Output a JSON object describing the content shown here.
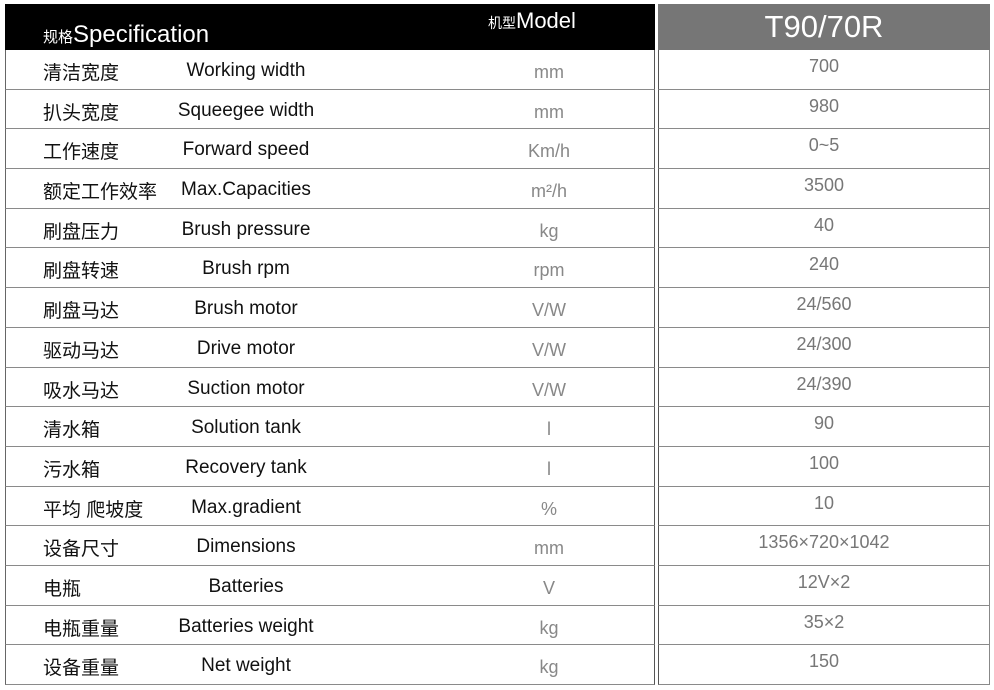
{
  "header": {
    "spec_cn": "规格",
    "spec_en": "Specification",
    "model_cn": "机型",
    "model_en": "Model",
    "model_value": "T90/70R"
  },
  "rows": [
    {
      "cn": "清洁宽度",
      "en": "Working width",
      "unit": "mm",
      "value": "700"
    },
    {
      "cn": "扒头宽度",
      "en": "Squeegee width",
      "unit": "mm",
      "value": "980"
    },
    {
      "cn": "工作速度",
      "en": "Forward speed",
      "unit": "Km/h",
      "value": "0~5"
    },
    {
      "cn": "额定工作效率",
      "en": "Max.Capacities",
      "unit": "m²/h",
      "value": "3500"
    },
    {
      "cn": "刷盘压力",
      "en": "Brush pressure",
      "unit": "kg",
      "value": "40"
    },
    {
      "cn": "刷盘转速",
      "en": "Brush rpm",
      "unit": "rpm",
      "value": "240"
    },
    {
      "cn": "刷盘马达",
      "en": "Brush motor",
      "unit": "V/W",
      "value": "24/560"
    },
    {
      "cn": "驱动马达",
      "en": "Drive motor",
      "unit": "V/W",
      "value": "24/300"
    },
    {
      "cn": "吸水马达",
      "en": "Suction motor",
      "unit": "V/W",
      "value": "24/390"
    },
    {
      "cn": "清水箱",
      "en": "Solution tank",
      "unit": "l",
      "value": "90"
    },
    {
      "cn": "污水箱",
      "en": "Recovery tank",
      "unit": "l",
      "value": "100"
    },
    {
      "cn": "平均 爬坡度",
      "en": "Max.gradient",
      "unit": "%",
      "value": "10"
    },
    {
      "cn": "设备尺寸",
      "en": "Dimensions",
      "unit": "mm",
      "value": "1356×720×1042"
    },
    {
      "cn": "电瓶",
      "en": "Batteries",
      "unit": "V",
      "value": "12V×2"
    },
    {
      "cn": "电瓶重量",
      "en": "Batteries weight",
      "unit": "kg",
      "value": "35×2"
    },
    {
      "cn": "设备重量",
      "en": "Net weight",
      "unit": "kg",
      "value": "150"
    }
  ]
}
